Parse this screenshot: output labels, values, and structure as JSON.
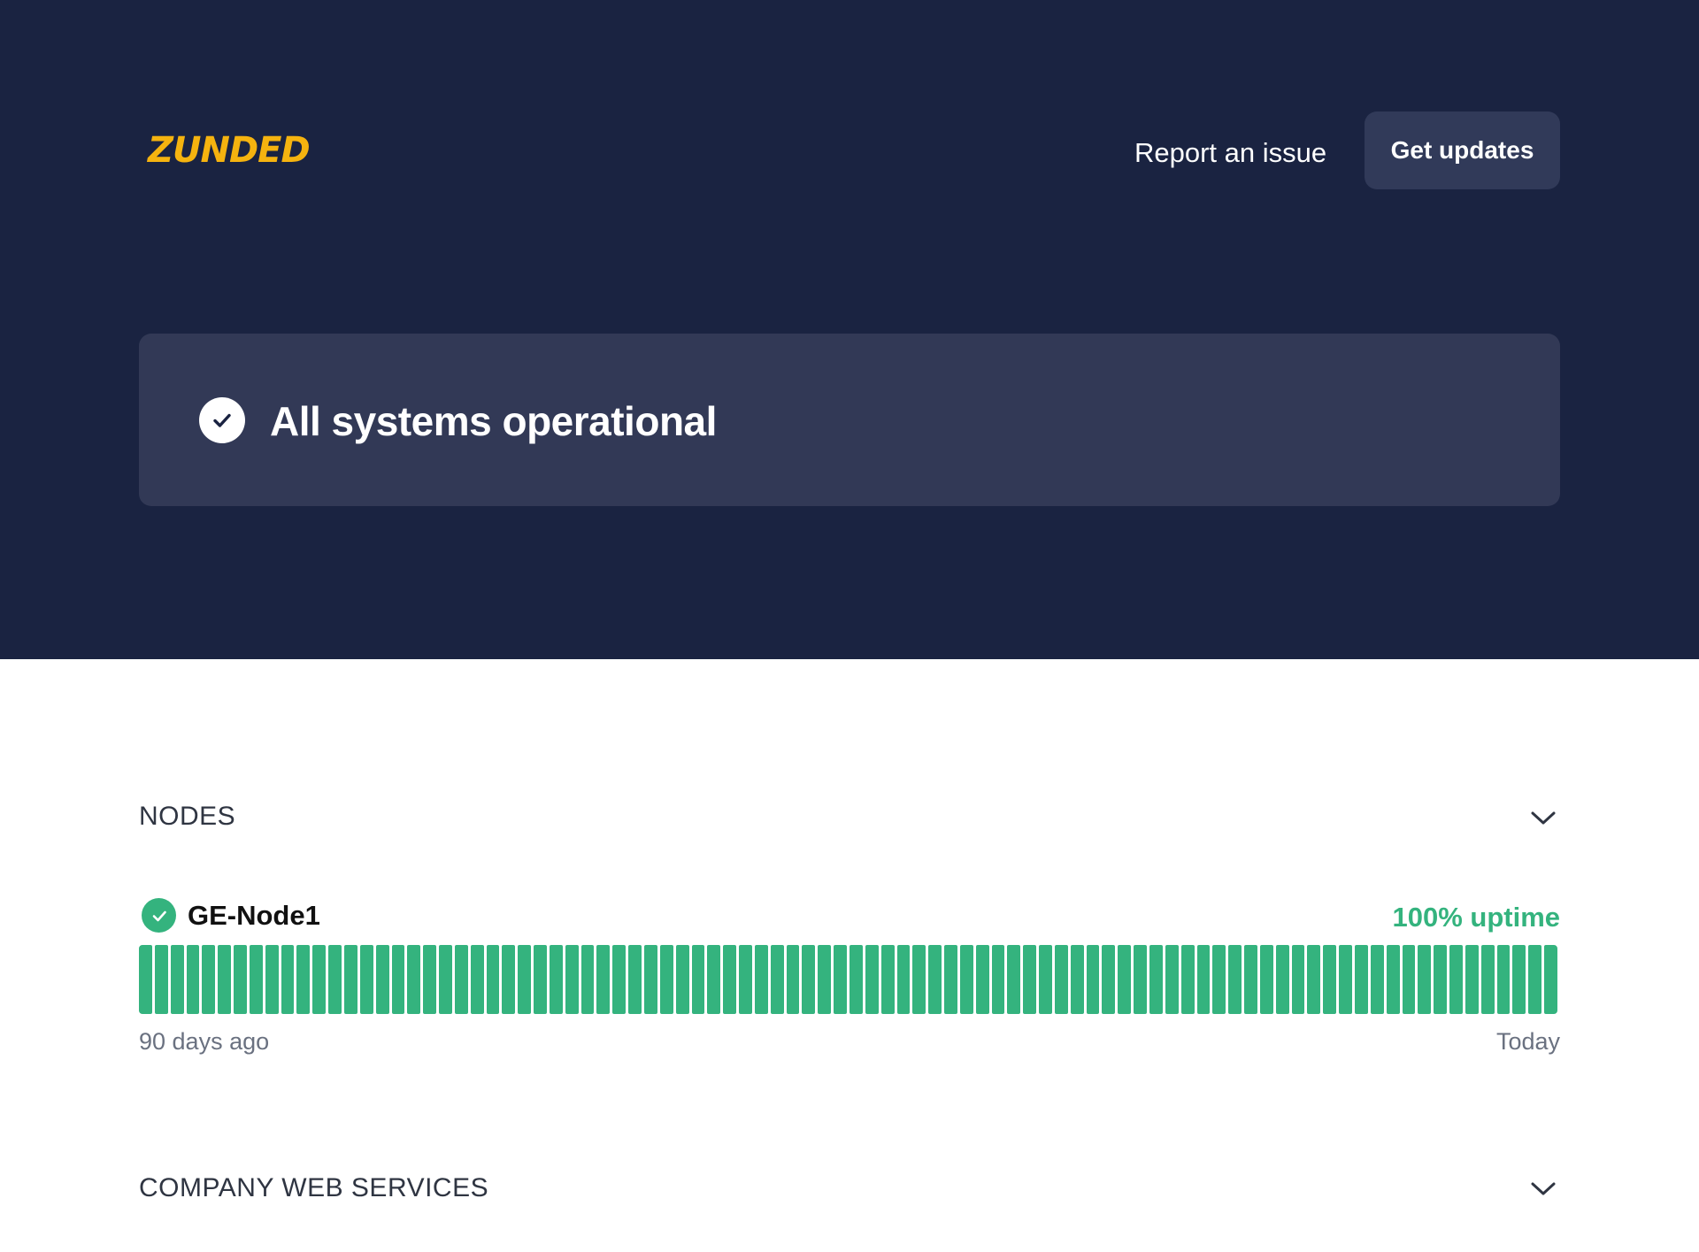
{
  "header": {
    "logo_text": "ZUNDED",
    "report_label": "Report an issue",
    "updates_label": "Get updates"
  },
  "status": {
    "title": "All systems operational"
  },
  "sections": [
    {
      "title": "NODES",
      "components": [
        {
          "name": "GE-Node1",
          "uptime": "100% uptime",
          "days": 90,
          "range_start": "90 days ago",
          "range_end": "Today"
        }
      ]
    },
    {
      "title": "COMPANY WEB SERVICES"
    }
  ],
  "colors": {
    "hero_bg": "#1a2341",
    "card_bg": "#323956",
    "accent_green": "#34b37e",
    "logo": "#f5b30f"
  },
  "icons": {
    "status": "check-circle-icon",
    "collapse": "chevron-down-icon",
    "component_status": "check-circle-icon"
  }
}
